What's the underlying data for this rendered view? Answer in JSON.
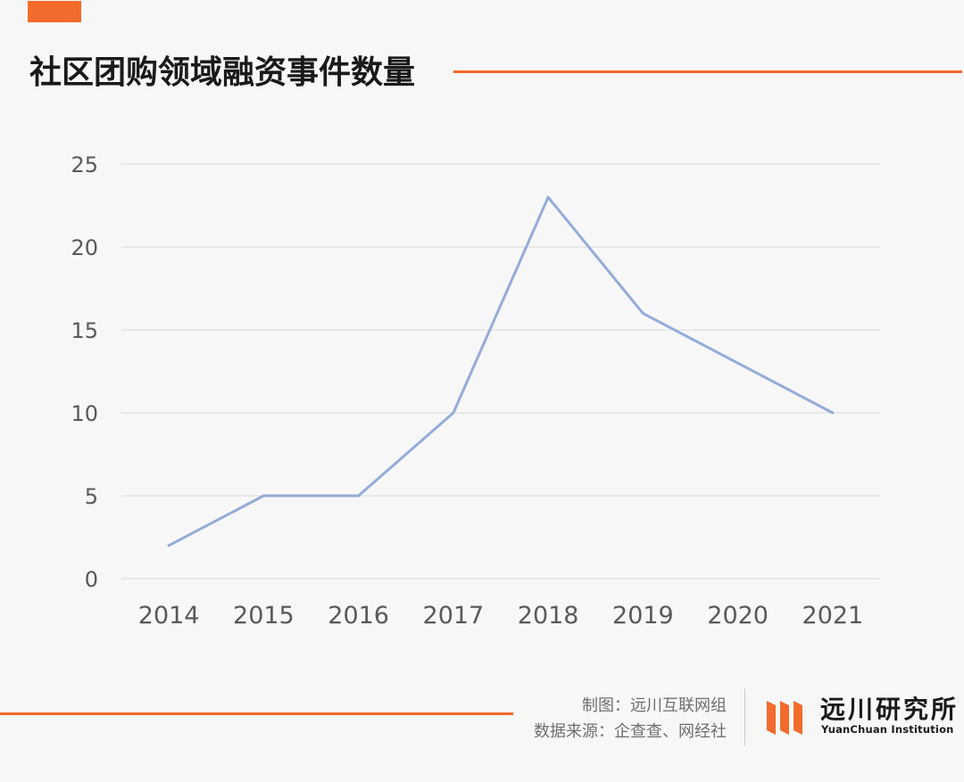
{
  "colors": {
    "accent": "#f26b2c",
    "line": "#93acd9",
    "grid": "#d9d9d9",
    "tick_text": "#595959",
    "background": "#f7f7f7"
  },
  "title": "社区团购领域融资事件数量",
  "chart_data": {
    "type": "line",
    "title": "社区团购领域融资事件数量",
    "categories": [
      "2014",
      "2015",
      "2016",
      "2017",
      "2018",
      "2019",
      "2020",
      "2021"
    ],
    "series": [
      {
        "values": [
          2,
          5,
          5,
          10,
          23,
          16,
          13,
          10
        ]
      }
    ],
    "ylim": [
      0,
      25
    ],
    "yticks": [
      "0",
      "5",
      "10",
      "15",
      "20",
      "25"
    ],
    "grid": true,
    "legend": "none",
    "xlabel": "",
    "ylabel": ""
  },
  "footer": {
    "made_by": "制图：远川互联网组",
    "source": "数据来源：企查查、网经社"
  },
  "logo": {
    "name": "远川研究所",
    "english": "YuanChuan Institution",
    "icon": "logo-bars-icon"
  }
}
